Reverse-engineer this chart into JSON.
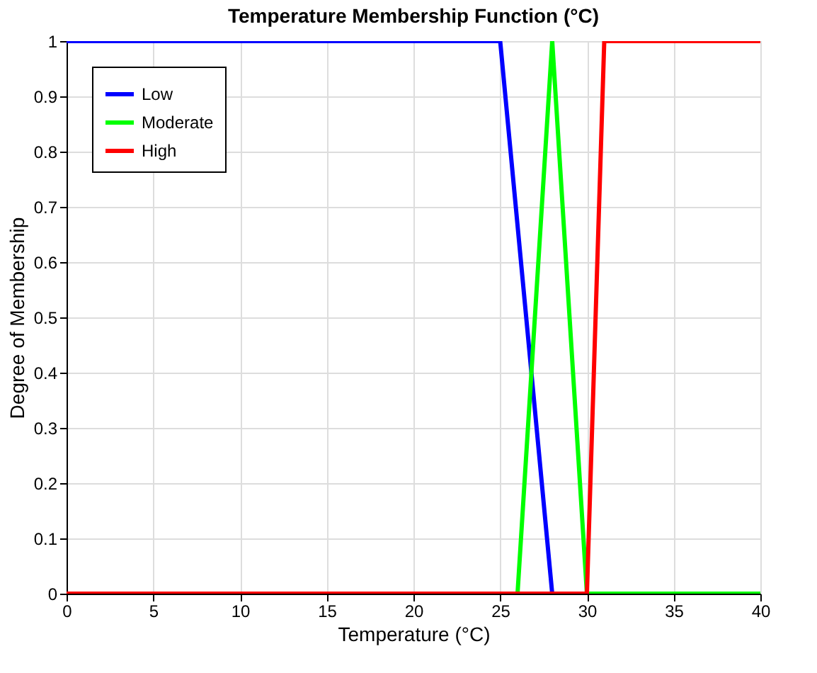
{
  "chart_data": {
    "type": "line",
    "title": "Temperature Membership Function (°C)",
    "xlabel": "Temperature (°C)",
    "ylabel": "Degree of Membership",
    "series": [
      {
        "name": "Low",
        "color": "#0000ff",
        "x": [
          0,
          25,
          28,
          40
        ],
        "values": [
          1,
          1,
          0,
          0
        ]
      },
      {
        "name": "Moderate",
        "color": "#00ff00",
        "x": [
          0,
          26,
          28,
          30,
          40
        ],
        "values": [
          0,
          0,
          1,
          0,
          0
        ]
      },
      {
        "name": "High",
        "color": "#ff0000",
        "x": [
          0,
          30,
          31,
          40
        ],
        "values": [
          0,
          0,
          1,
          1
        ]
      }
    ],
    "xlim": [
      0,
      40
    ],
    "xticks": [
      0,
      5,
      10,
      15,
      20,
      25,
      30,
      35,
      40
    ],
    "ylim": [
      0,
      1
    ],
    "yticks": [
      0,
      0.1,
      0.2,
      0.3,
      0.4,
      0.5,
      0.6,
      0.7,
      0.8,
      0.9,
      1
    ],
    "grid": true,
    "legend": "top left",
    "marker": "none",
    "line_style": "solid"
  }
}
